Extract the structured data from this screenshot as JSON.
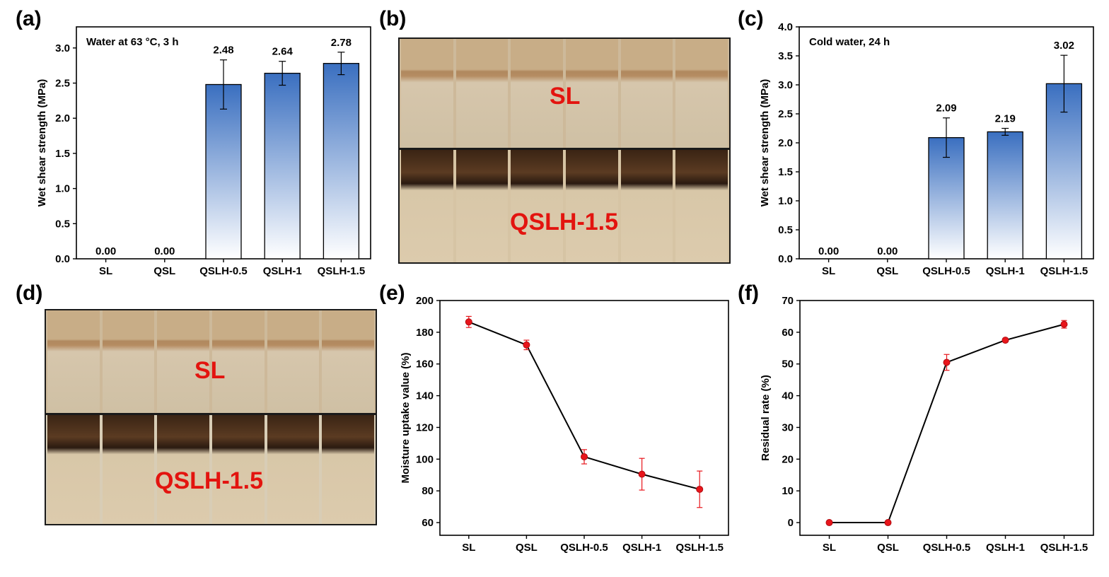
{
  "panels": {
    "a": "(a)",
    "b": "(b)",
    "c": "(c)",
    "d": "(d)",
    "e": "(e)",
    "f": "(f)"
  },
  "photos": {
    "b": {
      "top_label": "SL",
      "bottom_label": "QSLH-1.5"
    },
    "d": {
      "top_label": "SL",
      "bottom_label": "QSLH-1.5"
    }
  },
  "colors": {
    "bar_top": "#3a6fc0",
    "bar_bottom": "#ffffff",
    "line": "#000000",
    "marker": "#e8151b",
    "photo_label": "#e3140f"
  },
  "chart_data": [
    {
      "id": "a",
      "type": "bar",
      "annotation": "Water at 63 °C, 3 h",
      "categories": [
        "SL",
        "QSL",
        "QSLH-0.5",
        "QSLH-1",
        "QSLH-1.5"
      ],
      "values": [
        0.0,
        0.0,
        2.48,
        2.64,
        2.78
      ],
      "errors": [
        0,
        0,
        0.35,
        0.17,
        0.16
      ],
      "data_labels": [
        "0.00",
        "0.00",
        "2.48",
        "2.64",
        "2.78"
      ],
      "ylabel": "Wet shear strength (MPa)",
      "xlabel": "",
      "ylim": [
        0,
        3.3
      ],
      "yticks": [
        "0.0",
        "0.5",
        "1.0",
        "1.5",
        "2.0",
        "2.5",
        "3.0"
      ]
    },
    {
      "id": "c",
      "type": "bar",
      "annotation": "Cold water, 24 h",
      "categories": [
        "SL",
        "QSL",
        "QSLH-0.5",
        "QSLH-1",
        "QSLH-1.5"
      ],
      "values": [
        0.0,
        0.0,
        2.09,
        2.19,
        3.02
      ],
      "errors": [
        0,
        0,
        0.34,
        0.06,
        0.49
      ],
      "data_labels": [
        "0.00",
        "0.00",
        "2.09",
        "2.19",
        "3.02"
      ],
      "ylabel": "Wet shear strength (MPa)",
      "xlabel": "",
      "ylim": [
        0,
        4.0
      ],
      "yticks": [
        "0.0",
        "0.5",
        "1.0",
        "1.5",
        "2.0",
        "2.5",
        "3.0",
        "3.5",
        "4.0"
      ]
    },
    {
      "id": "e",
      "type": "line",
      "categories": [
        "SL",
        "QSL",
        "QSLH-0.5",
        "QSLH-1",
        "QSLH-1.5"
      ],
      "values": [
        186.5,
        172.0,
        101.5,
        90.5,
        81.0
      ],
      "errors": [
        3.5,
        3.0,
        4.5,
        10.0,
        11.5
      ],
      "ylabel": "Moisture uptake value (%)",
      "xlabel": "",
      "ylim": [
        52,
        200
      ],
      "yticks": [
        "60",
        "80",
        "100",
        "120",
        "140",
        "160",
        "180",
        "200"
      ]
    },
    {
      "id": "f",
      "type": "line",
      "categories": [
        "SL",
        "QSL",
        "QSLH-0.5",
        "QSLH-1",
        "QSLH-1.5"
      ],
      "values": [
        0.0,
        0.0,
        50.5,
        57.5,
        62.5
      ],
      "errors": [
        0,
        0,
        2.5,
        0.5,
        1.2
      ],
      "ylabel": "Residual rate (%)",
      "xlabel": "",
      "ylim": [
        -4,
        70
      ],
      "yticks": [
        "0",
        "10",
        "20",
        "30",
        "40",
        "50",
        "60",
        "70"
      ]
    }
  ]
}
